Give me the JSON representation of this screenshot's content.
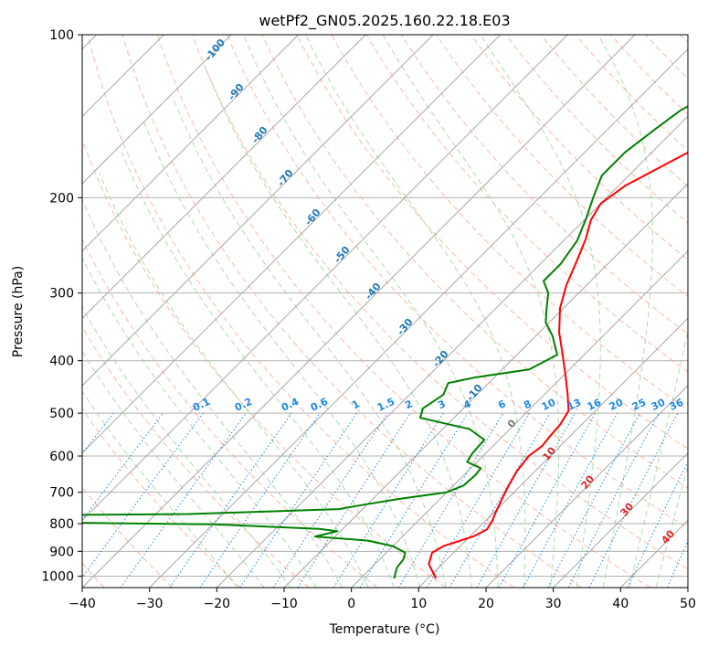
{
  "chart_data": {
    "type": "line",
    "title": "wetPf2_GN05.2025.160.22.18.E03",
    "xlabel": "Temperature (°C)",
    "ylabel": "Pressure (hPa)",
    "xlim": [
      -40,
      50
    ],
    "ylim": [
      1050,
      100
    ],
    "y_scale": "log",
    "grid": true,
    "skew_chart": true,
    "x_ticks": [
      -40,
      -30,
      -20,
      -10,
      0,
      10,
      20,
      30,
      40,
      50
    ],
    "y_ticks": [
      100,
      200,
      300,
      400,
      500,
      600,
      700,
      800,
      900,
      1000
    ],
    "series": [
      {
        "color": "#ff0000",
        "points": [
          [
            11.2,
            1010
          ],
          [
            8,
            950
          ],
          [
            6.8,
            905
          ],
          [
            7.5,
            880
          ],
          [
            10.5,
            845
          ],
          [
            11.5,
            820
          ],
          [
            11,
            790
          ],
          [
            10.2,
            760
          ],
          [
            9.2,
            720
          ],
          [
            8.2,
            680
          ],
          [
            7.3,
            640
          ],
          [
            6.8,
            600
          ],
          [
            7.3,
            575
          ],
          [
            7,
            550
          ],
          [
            6.8,
            525
          ],
          [
            6,
            495
          ],
          [
            3.3,
            460
          ],
          [
            0.2,
            425
          ],
          [
            -3.2,
            390
          ],
          [
            -7,
            355
          ],
          [
            -10.5,
            320
          ],
          [
            -13,
            290
          ],
          [
            -15,
            262
          ],
          [
            -17,
            238
          ],
          [
            -19,
            220
          ],
          [
            -20,
            205
          ],
          [
            -19,
            190
          ],
          [
            -15,
            167
          ],
          [
            -12,
            152
          ],
          [
            -6,
            132
          ],
          [
            0,
            117
          ],
          [
            3,
            108
          ],
          [
            5,
            100
          ]
        ]
      },
      {
        "color": "#008000",
        "points": [
          [
            5,
            1010
          ],
          [
            3.8,
            965
          ],
          [
            3.5,
            930
          ],
          [
            2.8,
            905
          ],
          [
            0,
            880
          ],
          [
            -4.5,
            860
          ],
          [
            -13,
            845
          ],
          [
            -10.5,
            826
          ],
          [
            -13.5,
            818
          ],
          [
            -30,
            802
          ],
          [
            -80,
            790
          ],
          [
            -80,
            775
          ],
          [
            -35,
            768
          ],
          [
            -13.5,
            752
          ],
          [
            -10.5,
            738
          ],
          [
            -6,
            720
          ],
          [
            0,
            700
          ],
          [
            1.5,
            680
          ],
          [
            1.7,
            650
          ],
          [
            1.5,
            632
          ],
          [
            -1.5,
            615
          ],
          [
            -2,
            592
          ],
          [
            -2.2,
            560
          ],
          [
            -6,
            535
          ],
          [
            -15,
            510
          ],
          [
            -16,
            490
          ],
          [
            -15,
            462
          ],
          [
            -16,
            440
          ],
          [
            -13,
            430
          ],
          [
            -6,
            415
          ],
          [
            -4,
            390
          ],
          [
            -7.5,
            360
          ],
          [
            -10.5,
            340
          ],
          [
            -12.5,
            320
          ],
          [
            -14.5,
            300
          ],
          [
            -17,
            285
          ],
          [
            -17,
            265
          ],
          [
            -18,
            240
          ],
          [
            -20,
            218
          ],
          [
            -22,
            200
          ],
          [
            -24,
            182
          ],
          [
            -24,
            165
          ],
          [
            -23,
            150
          ],
          [
            -22,
            138
          ],
          [
            -19,
            125
          ],
          [
            -15,
            112
          ],
          [
            -12,
            100
          ]
        ]
      }
    ],
    "dry_adiabat_labels": [
      "-100",
      "-90",
      "-80",
      "-70",
      "-60",
      "-50",
      "-40",
      "-30",
      "-20",
      "-10"
    ],
    "moist_adiabat_labels": [
      "0",
      "10",
      "20",
      "30",
      "40"
    ],
    "mixing_ratio_labels": [
      "0.1",
      "0.2",
      "0.4",
      "0.6",
      "1",
      "1.5",
      "2",
      "3",
      "4",
      "6",
      "8",
      "10",
      "13",
      "16",
      "20",
      "25",
      "30",
      "36"
    ]
  }
}
